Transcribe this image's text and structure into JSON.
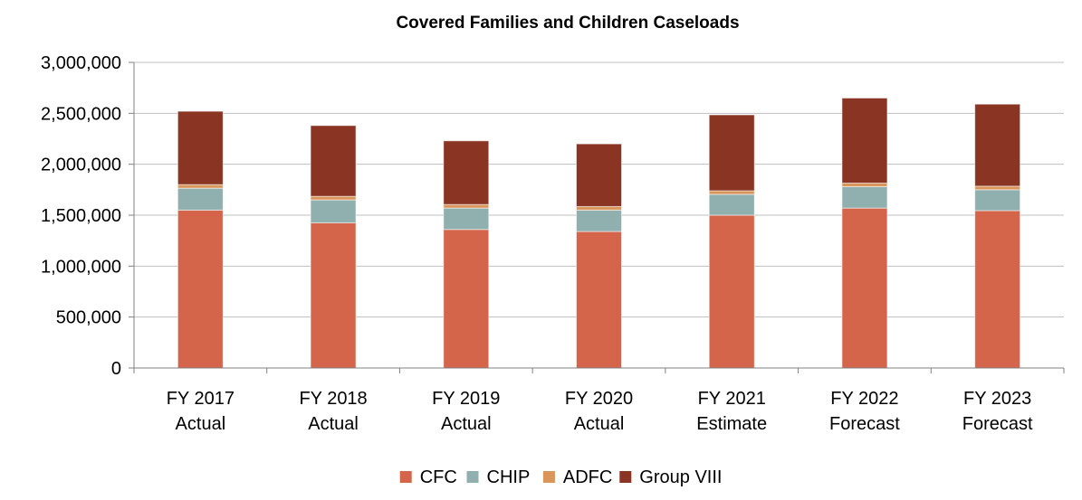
{
  "chart_data": {
    "type": "bar",
    "stacked": true,
    "title": "Covered Families and Children Caseloads",
    "xlabel": "",
    "ylabel": "",
    "categories": [
      [
        "FY 2017",
        "Actual"
      ],
      [
        "FY 2018",
        "Actual"
      ],
      [
        "FY 2019",
        "Actual"
      ],
      [
        "FY 2020",
        "Actual"
      ],
      [
        "FY 2021",
        "Estimate"
      ],
      [
        "FY 2022",
        "Forecast"
      ],
      [
        "FY 2023",
        "Forecast"
      ]
    ],
    "series": [
      {
        "name": "CFC",
        "color": "#D4654A",
        "values": [
          1550000,
          1425000,
          1360000,
          1340000,
          1500000,
          1570000,
          1545000
        ]
      },
      {
        "name": "CHIP",
        "color": "#8FB0AE",
        "values": [
          215000,
          225000,
          210000,
          210000,
          205000,
          210000,
          205000
        ]
      },
      {
        "name": "ADFC",
        "color": "#D9955A",
        "values": [
          35000,
          35000,
          35000,
          35000,
          35000,
          35000,
          35000
        ]
      },
      {
        "name": "Group VIII",
        "color": "#8A3424",
        "values": [
          720000,
          695000,
          625000,
          615000,
          745000,
          835000,
          805000
        ]
      }
    ],
    "ylim": [
      0,
      3000000
    ],
    "yticks": [
      0,
      500000,
      1000000,
      1500000,
      2000000,
      2500000,
      3000000
    ],
    "ytick_labels": [
      "0",
      "500,000",
      "1,000,000",
      "1,500,000",
      "2,000,000",
      "2,500,000",
      "3,000,000"
    ],
    "grid": true,
    "legend_position": "bottom-center"
  }
}
